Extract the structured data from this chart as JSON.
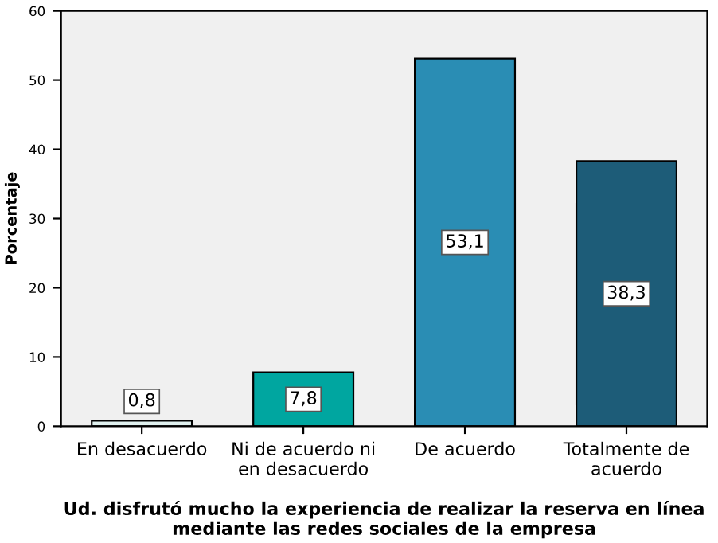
{
  "chart_data": {
    "type": "bar",
    "categories": [
      "En desacuerdo",
      "Ni de acuerdo ni\nen desacuerdo",
      "De acuerdo",
      "Totalmente de\nacuerdo"
    ],
    "values": [
      0.8,
      7.8,
      53.1,
      38.3
    ],
    "value_labels": [
      "0,8",
      "7,8",
      "53,1",
      "38,3"
    ],
    "colors": [
      "#dff0ee",
      "#00a6a0",
      "#2a8db4",
      "#1d5c78"
    ],
    "ylabel": "Porcentaje",
    "xlabel": "Ud. disfrutó mucho la experiencia de realizar la reserva en línea\nmediante las redes sociales de la empresa",
    "ylim": [
      0,
      60
    ],
    "yticks": [
      0,
      10,
      20,
      30,
      40,
      50,
      60
    ],
    "grid": false,
    "legend": false
  }
}
